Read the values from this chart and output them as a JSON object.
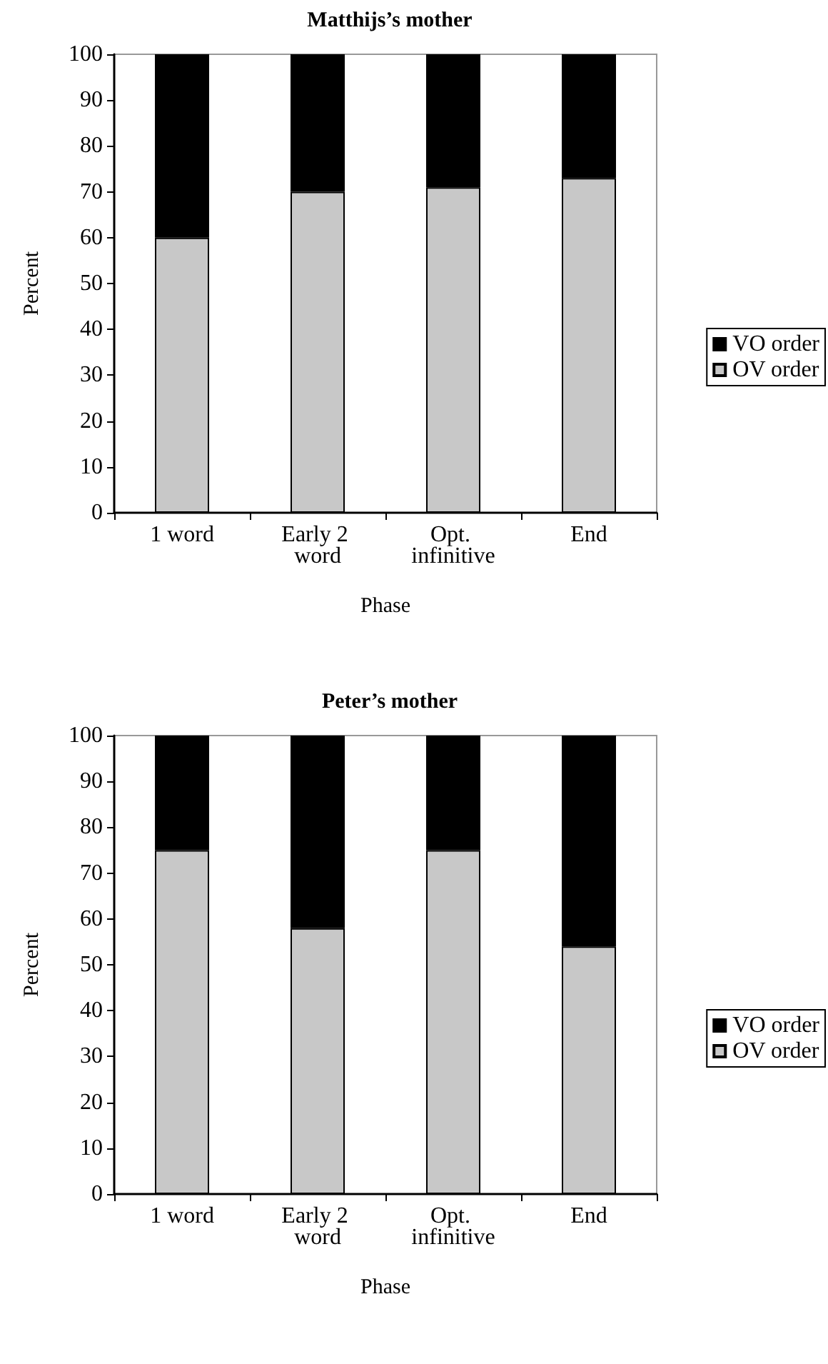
{
  "chart_data": [
    {
      "type": "bar",
      "title": "Matthijs’s mother",
      "xlabel": "Phase",
      "ylabel": "Percent",
      "categories": [
        "1 word",
        "Early 2 word",
        "Opt. infinitive",
        "End"
      ],
      "stacked": true,
      "series": [
        {
          "name": "OV order",
          "color": "#c8c8c8",
          "values": [
            60,
            70,
            71,
            73
          ]
        },
        {
          "name": "VO order",
          "color": "#000000",
          "values": [
            40,
            30,
            29,
            27
          ]
        }
      ],
      "ylim": [
        0,
        100
      ],
      "yticks": [
        0,
        10,
        20,
        30,
        40,
        50,
        60,
        70,
        80,
        90,
        100
      ],
      "grid": false,
      "legend": "right"
    },
    {
      "type": "bar",
      "title": "Peter’s mother",
      "xlabel": "Phase",
      "ylabel": "Percent",
      "categories": [
        "1 word",
        "Early 2 word",
        "Opt. infinitive",
        "End"
      ],
      "stacked": true,
      "series": [
        {
          "name": "OV order",
          "color": "#c8c8c8",
          "values": [
            75,
            58,
            75,
            54
          ]
        },
        {
          "name": "VO order",
          "color": "#000000",
          "values": [
            25,
            42,
            25,
            46
          ]
        }
      ],
      "ylim": [
        0,
        100
      ],
      "yticks": [
        0,
        10,
        20,
        30,
        40,
        50,
        60,
        70,
        80,
        90,
        100
      ],
      "grid": false,
      "legend": "right"
    }
  ]
}
